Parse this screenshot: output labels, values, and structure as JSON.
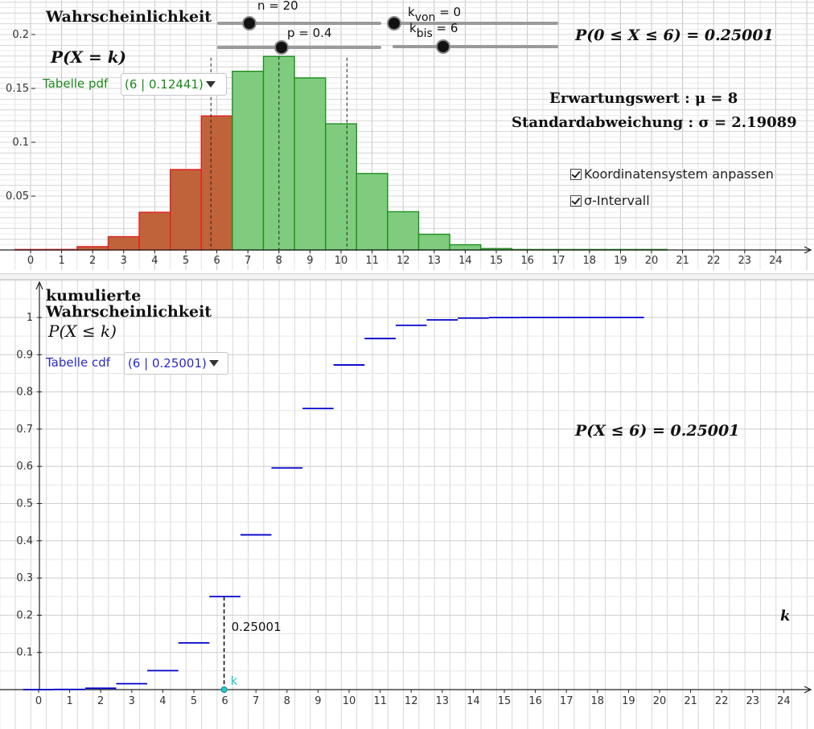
{
  "top_panel": {
    "title": "Wahrscheinlichkeit",
    "pdf_label": "P(X = k)",
    "table_label": "Tabelle pdf",
    "table_value": "(6 | 0.12441)",
    "interval_prob": "P(0 ≤ X ≤ 6) = 0.25001",
    "expectation": "Erwartungswert :  μ = 8",
    "stddev": "Standardabweichung :  σ = 2.19089",
    "checkbox_coords": "Koordinatensystem anpassen",
    "checkbox_sigma": "σ-Intervall",
    "sliders": {
      "n_label": "n = 20",
      "p_label": "p = 0.4",
      "kvon_label": "k",
      "kvon_sub": "von",
      "kvon_value": " = 0",
      "kbis_label": "k",
      "kbis_sub": "bis",
      "kbis_value": " = 6"
    }
  },
  "bottom_panel": {
    "title_line1": "kumulierte",
    "title_line2": "Wahrscheinlichkeit",
    "cdf_label": "P(X ≤ k)",
    "table_label": "Tabelle cdf",
    "table_value": "(6 | 0.25001)",
    "cdf_value_text": "P(X ≤ 6) = 0.25001",
    "segment_label": "0.25001",
    "point_label": "k",
    "axis_label": "k"
  },
  "colors": {
    "highlight_bar": "#c0633a",
    "highlight_stroke": "#e02020",
    "normal_bar": "#7fcc7f",
    "normal_stroke": "#1f8f1f",
    "cdf_line": "#0000cc",
    "table_pdf_text": "#1a8a1a",
    "table_cdf_text": "#2a2acc",
    "point": "#22cccc"
  },
  "chart_data": [
    {
      "type": "bar",
      "title": "Wahrscheinlichkeit",
      "xlabel": "",
      "ylabel": "P(X = k)",
      "xlim": [
        0,
        24
      ],
      "ylim": [
        0,
        0.2
      ],
      "x_ticks": [
        0,
        1,
        2,
        3,
        4,
        5,
        6,
        7,
        8,
        9,
        10,
        11,
        12,
        13,
        14,
        15,
        16,
        17,
        18,
        19,
        20,
        21,
        22,
        23,
        24
      ],
      "y_ticks": [
        0.05,
        0.1,
        0.15,
        0.2
      ],
      "categories": [
        0,
        1,
        2,
        3,
        4,
        5,
        6,
        7,
        8,
        9,
        10,
        11,
        12,
        13,
        14,
        15,
        16,
        17,
        18,
        19,
        20
      ],
      "values": [
        4e-05,
        0.00049,
        0.00309,
        0.01235,
        0.03499,
        0.07465,
        0.12441,
        0.16588,
        0.17971,
        0.15974,
        0.11714,
        0.07099,
        0.0355,
        0.01456,
        0.00485,
        0.00129,
        0.00027,
        4e-05,
        0.0,
        0.0,
        0.0
      ],
      "highlight_range": [
        0,
        6
      ],
      "sigma_interval": [
        5.81,
        10.19
      ],
      "grid": true
    },
    {
      "type": "step",
      "title": "kumulierte Wahrscheinlichkeit",
      "xlabel": "k",
      "ylabel": "P(X ≤ k)",
      "xlim": [
        0,
        24
      ],
      "ylim": [
        0,
        1
      ],
      "x_ticks": [
        0,
        1,
        2,
        3,
        4,
        5,
        6,
        7,
        8,
        9,
        10,
        11,
        12,
        13,
        14,
        15,
        16,
        17,
        18,
        19,
        20,
        21,
        22,
        23,
        24
      ],
      "y_ticks": [
        0.1,
        0.2,
        0.3,
        0.4,
        0.5,
        0.6,
        0.7,
        0.8,
        0.9,
        1
      ],
      "categories": [
        0,
        1,
        2,
        3,
        4,
        5,
        6,
        7,
        8,
        9,
        10,
        11,
        12,
        13,
        14,
        15,
        16,
        17,
        18,
        19
      ],
      "values": [
        4e-05,
        0.00052,
        0.00361,
        0.01596,
        0.05095,
        0.1256,
        0.25001,
        0.41589,
        0.5956,
        0.75534,
        0.87248,
        0.94347,
        0.97897,
        0.99353,
        0.99839,
        0.99968,
        0.99995,
        0.99999,
        1.0,
        1.0
      ],
      "marked_k": 6,
      "marked_value": 0.25001,
      "grid": true
    }
  ]
}
